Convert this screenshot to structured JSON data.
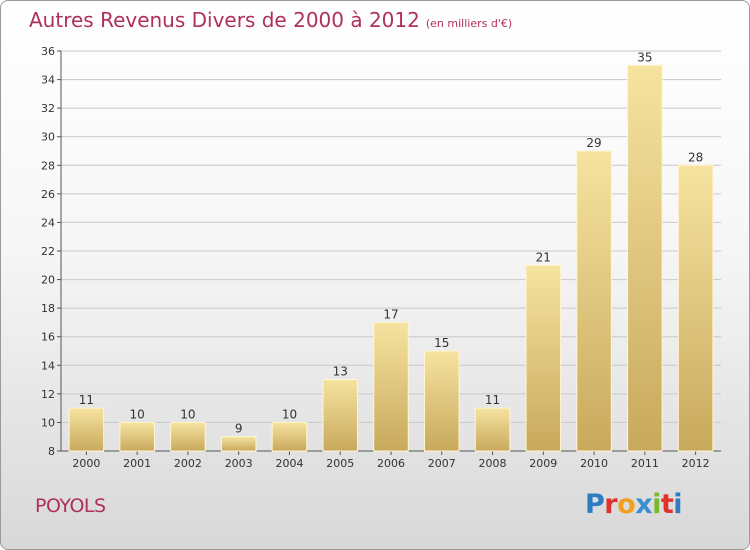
{
  "header": {
    "title": "Autres Revenus Divers de 2000 à 2012",
    "unit": "(en milliers d'€)"
  },
  "footer": {
    "place": "POYOLS",
    "logo": {
      "letters": [
        "P",
        "r",
        "o",
        "x",
        "i",
        "t",
        "i"
      ],
      "colors": [
        "#2e7bc4",
        "#e0312b",
        "#f0a020",
        "#3a8fd0",
        "#7ab829",
        "#e0312b",
        "#2e7bc4"
      ]
    }
  },
  "colors": {
    "bar_light": "#f6e3a0",
    "bar_dark": "#c8a95c",
    "grid": "#c8c8c8",
    "title": "#b0305a"
  },
  "chart_data": {
    "type": "bar",
    "title": "Autres Revenus Divers de 2000 à 2012",
    "subtitle": "(en milliers d'€)",
    "xlabel": "",
    "ylabel": "",
    "categories": [
      "2000",
      "2001",
      "2002",
      "2003",
      "2004",
      "2005",
      "2006",
      "2007",
      "2008",
      "2009",
      "2010",
      "2011",
      "2012"
    ],
    "values": [
      11,
      10,
      10,
      9,
      10,
      13,
      17,
      15,
      11,
      21,
      29,
      35,
      28
    ],
    "ylim": [
      8,
      36
    ],
    "yticks": [
      8,
      10,
      12,
      14,
      16,
      18,
      20,
      22,
      24,
      26,
      28,
      30,
      32,
      34,
      36
    ],
    "grid": true,
    "data_labels": true
  }
}
